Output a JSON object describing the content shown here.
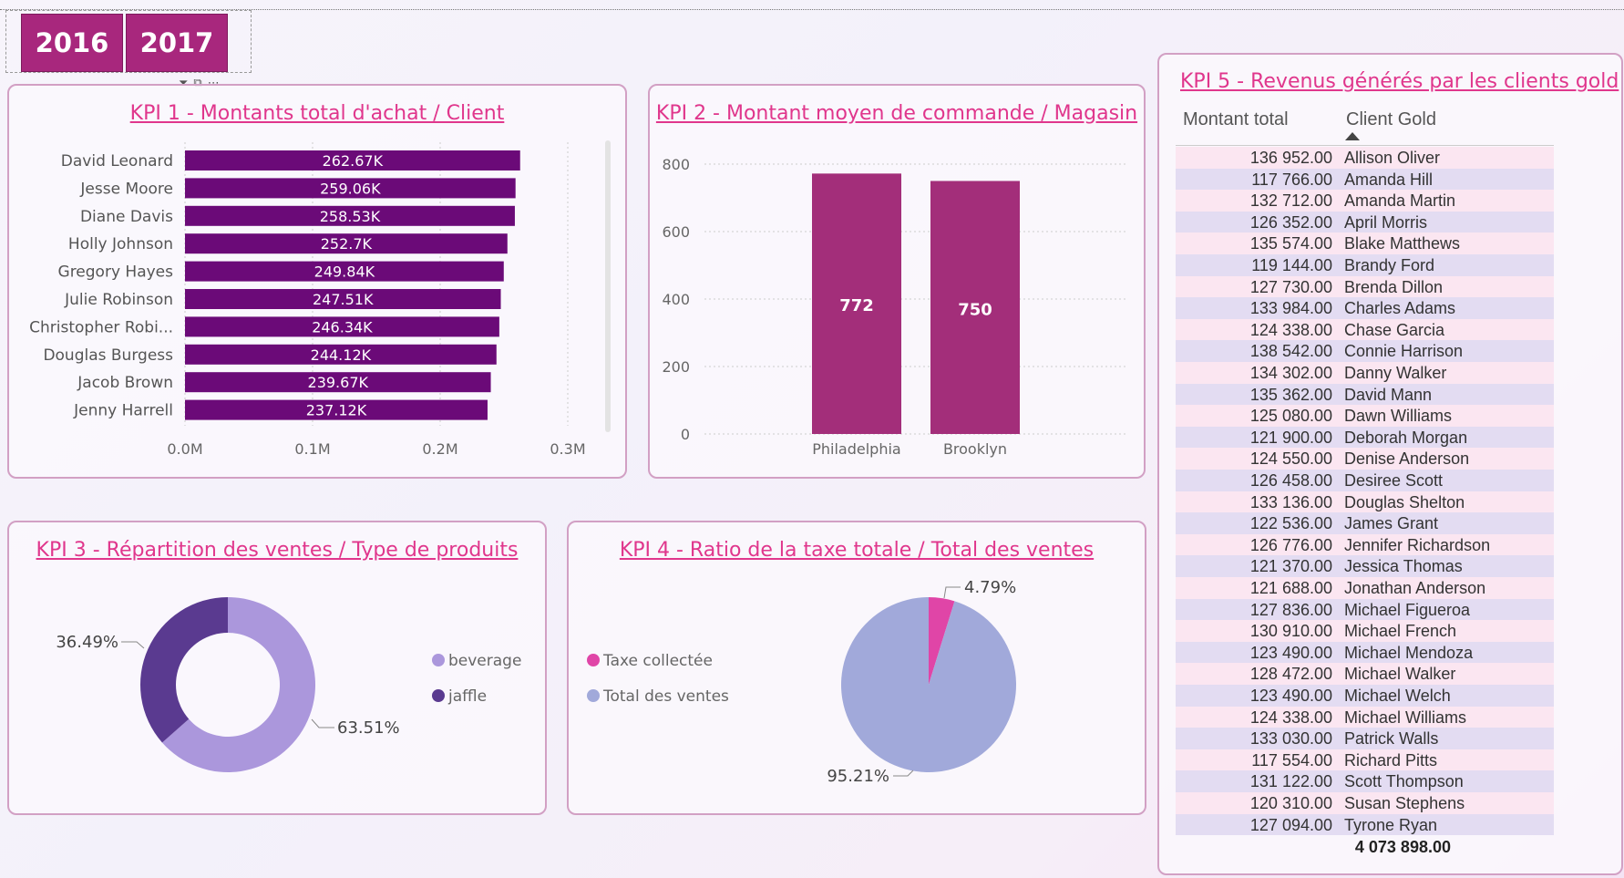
{
  "slicer": {
    "years": [
      "2016",
      "2017"
    ],
    "toolbar_icons": [
      "filter-icon",
      "focus-icon",
      "more-options-icon"
    ]
  },
  "kpi1": {
    "title": "KPI 1 - Montants total d'achat / Client",
    "chart_data": {
      "type": "bar",
      "orientation": "horizontal",
      "categories": [
        "David Leonard",
        "Jesse Moore",
        "Diane Davis",
        "Holly Johnson",
        "Gregory Hayes",
        "Julie Robinson",
        "Christopher Robi...",
        "Douglas Burgess",
        "Jacob Brown",
        "Jenny Harrell"
      ],
      "values": [
        262670,
        259060,
        258530,
        252700,
        249840,
        247510,
        246340,
        244120,
        239670,
        237120
      ],
      "data_labels": [
        "262.67K",
        "259.06K",
        "258.53K",
        "252.7K",
        "249.84K",
        "247.51K",
        "246.34K",
        "244.12K",
        "239.67K",
        "237.12K"
      ],
      "x_ticks": [
        "0.0M",
        "0.1M",
        "0.2M",
        "0.3M"
      ],
      "xlim": [
        0,
        300000
      ],
      "color": "#6b0a78"
    }
  },
  "kpi2": {
    "title": "KPI 2 - Montant moyen de commande / Magasin",
    "chart_data": {
      "type": "bar",
      "categories": [
        "Philadelphia",
        "Brooklyn"
      ],
      "values": [
        772,
        750
      ],
      "data_labels": [
        "772",
        "750"
      ],
      "y_ticks": [
        "0",
        "200",
        "400",
        "600",
        "800"
      ],
      "ylim": [
        0,
        800
      ],
      "color": "#a32e7a"
    }
  },
  "kpi3": {
    "title": "KPI 3 - Répartition des ventes / Type de produits",
    "chart_data": {
      "type": "pie",
      "donut": true,
      "labels": [
        "beverage",
        "jaffle"
      ],
      "values": [
        63.51,
        36.49
      ],
      "data_labels": [
        "63.51%",
        "36.49%"
      ],
      "colors": [
        "#ab97dc",
        "#5a3a90"
      ],
      "legend_position": "right"
    }
  },
  "kpi4": {
    "title": "KPI 4 - Ratio de la taxe totale / Total des ventes",
    "chart_data": {
      "type": "pie",
      "labels": [
        "Taxe collectée",
        "Total des ventes"
      ],
      "values": [
        4.79,
        95.21
      ],
      "data_labels": [
        "4.79%",
        "95.21%"
      ],
      "colors": [
        "#e045a7",
        "#a1a9da"
      ],
      "legend_position": "left"
    }
  },
  "kpi5": {
    "title": "KPI 5 - Revenus générés par les clients gold",
    "columns": [
      "Montant total",
      "Client Gold"
    ],
    "sort_icon": "sort-ascending-icon",
    "rows": [
      [
        "136 952.00",
        "Allison Oliver"
      ],
      [
        "117 766.00",
        "Amanda Hill"
      ],
      [
        "132 712.00",
        "Amanda Martin"
      ],
      [
        "126 352.00",
        "April Morris"
      ],
      [
        "135 574.00",
        "Blake Matthews"
      ],
      [
        "119 144.00",
        "Brandy Ford"
      ],
      [
        "127 730.00",
        "Brenda Dillon"
      ],
      [
        "133 984.00",
        "Charles Adams"
      ],
      [
        "124 338.00",
        "Chase Garcia"
      ],
      [
        "138 542.00",
        "Connie Harrison"
      ],
      [
        "134 302.00",
        "Danny Walker"
      ],
      [
        "135 362.00",
        "David Mann"
      ],
      [
        "125 080.00",
        "Dawn Williams"
      ],
      [
        "121 900.00",
        "Deborah Morgan"
      ],
      [
        "124 550.00",
        "Denise Anderson"
      ],
      [
        "126 458.00",
        "Desiree Scott"
      ],
      [
        "133 136.00",
        "Douglas Shelton"
      ],
      [
        "122 536.00",
        "James Grant"
      ],
      [
        "126 776.00",
        "Jennifer Richardson"
      ],
      [
        "121 370.00",
        "Jessica Thomas"
      ],
      [
        "121 688.00",
        "Jonathan Anderson"
      ],
      [
        "127 836.00",
        "Michael Figueroa"
      ],
      [
        "130 910.00",
        "Michael French"
      ],
      [
        "123 490.00",
        "Michael Mendoza"
      ],
      [
        "128 472.00",
        "Michael Walker"
      ],
      [
        "123 490.00",
        "Michael Welch"
      ],
      [
        "124 338.00",
        "Michael Williams"
      ],
      [
        "133 030.00",
        "Patrick Walls"
      ],
      [
        "117 554.00",
        "Richard Pitts"
      ],
      [
        "131 122.00",
        "Scott Thompson"
      ],
      [
        "120 310.00",
        "Susan Stephens"
      ],
      [
        "127 094.00",
        "Tyrone Ryan"
      ]
    ],
    "total": "4 073 898.00",
    "row_colors": [
      "#fbe6f1",
      "#e3dcf2"
    ]
  }
}
